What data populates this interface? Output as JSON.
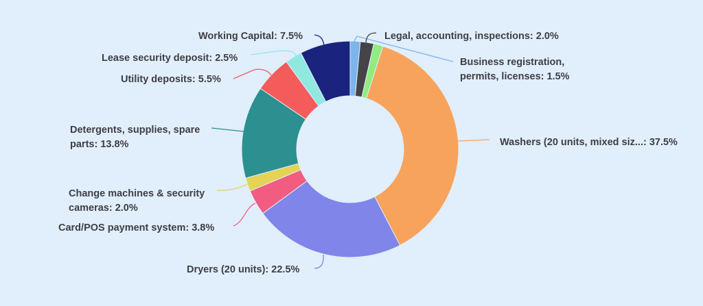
{
  "chart_data": {
    "type": "pie",
    "donut": true,
    "title": "",
    "center": [
      510,
      218
    ],
    "outer_radius": 158,
    "inner_radius": 78,
    "slices": [
      {
        "label": "Business registration, permits, licenses",
        "value": 1.5,
        "color": "#7cb5ec",
        "display": [
          "Business registration,",
          "permits, licenses: 1.5%"
        ],
        "text_pos": [
          670,
          95
        ],
        "anchor": "start",
        "line": "M 515 62 L 520 53 L 660 90"
      },
      {
        "label": "Legal, accounting, inspections",
        "value": 2.0,
        "color": "#434348",
        "display": [
          "Legal, accounting, inspections: 2.0%"
        ],
        "text_pos": [
          560,
          57
        ],
        "anchor": "start",
        "line": "M 533 62 C 534 52, 538 48, 548 48"
      },
      {
        "label": "",
        "value": 1.4,
        "color": "#90ed7d",
        "display": [],
        "text_pos": null,
        "anchor": "start",
        "line": null
      },
      {
        "label": "Washers (20 units, mixed siz...",
        "value": 37.5,
        "color": "#f7a35c",
        "display": [
          "Washers (20 units, mixed siz...: 37.5%"
        ],
        "text_pos": [
          728,
          212
        ],
        "anchor": "start",
        "line": "M 667 206 L 713 204"
      },
      {
        "label": "Dryers (20 units)",
        "value": 22.5,
        "color": "#8085e9",
        "display": [
          "Dryers (20 units): 22.5%"
        ],
        "text_pos": [
          272,
          398
        ],
        "anchor": "start",
        "line": "M 471 372 C 472 385, 468 392, 458 392"
      },
      {
        "label": "Card/POS payment system",
        "value": 3.8,
        "color": "#f15c80",
        "display": [
          "Card/POS payment system: 3.8%"
        ],
        "text_pos": [
          85,
          337
        ],
        "anchor": "start",
        "line": "M 372 297 C 358 302, 355 325, 340 330"
      },
      {
        "label": "Change machines & security cameras",
        "value": 2.0,
        "color": "#e4d354",
        "display": [
          "Change machines & security",
          "cameras: 2.0%"
        ],
        "text_pos": [
          100,
          287
        ],
        "anchor": "start",
        "line": "M 360 269 C 350 275, 330 279, 316 278"
      },
      {
        "label": "Detergents, supplies, spare parts",
        "value": 13.8,
        "color": "#2b908f",
        "display": [
          "Detergents, supplies, spare",
          "parts: 13.8%"
        ],
        "text_pos": [
          102,
          194
        ],
        "anchor": "start",
        "line": "M 355 192 L 308 187"
      },
      {
        "label": "Utility deposits",
        "value": 5.5,
        "color": "#f45b5b",
        "display": [
          "Utility deposits: 5.5%"
        ],
        "text_pos": [
          176,
          120
        ],
        "anchor": "start",
        "line": "M 395 110 C 390 102, 380 100, 370 102 L 340 115"
      },
      {
        "label": "Lease security deposit",
        "value": 2.5,
        "color": "#91e8e1",
        "display": [
          "Lease security deposit: 2.5%"
        ],
        "text_pos": [
          148,
          89
        ],
        "anchor": "start",
        "line": "M 432 82 C 428 75, 424 74, 410 74 L 365 80"
      },
      {
        "label": "Working Capital",
        "value": 7.5,
        "color": "#1a237e",
        "display": [
          "Working Capital: 7.5%"
        ],
        "text_pos": [
          289,
          57
        ],
        "anchor": "start",
        "line": "M 472 66 C 470 55, 466 52, 458 51"
      }
    ]
  }
}
